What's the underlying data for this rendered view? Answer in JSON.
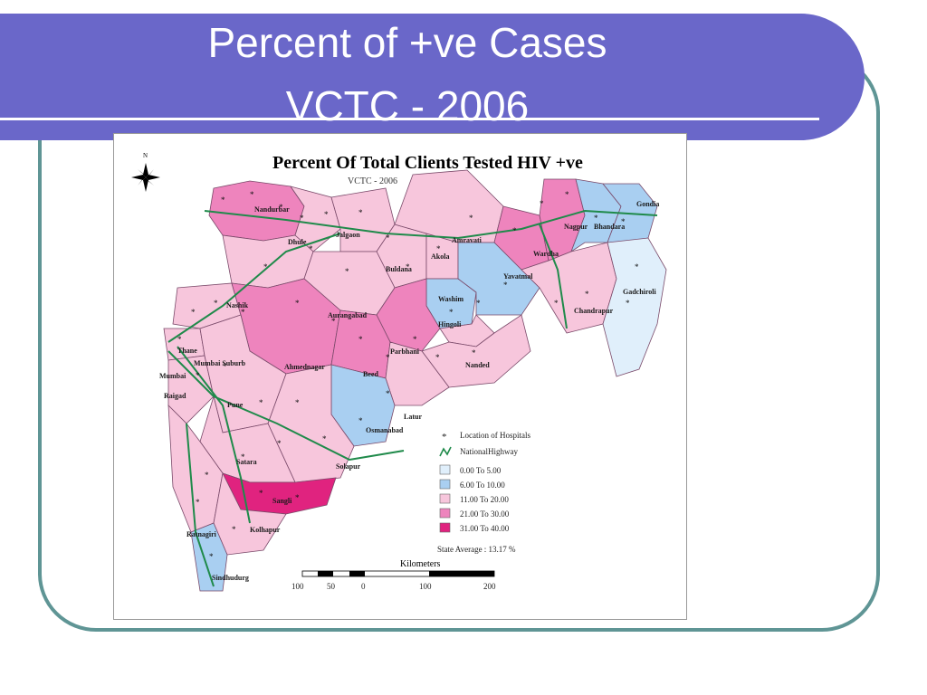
{
  "slide": {
    "title_line1": "Percent of +ve Cases",
    "title_line2": "VCTC - 2006"
  },
  "map": {
    "title": "Percent Of Total Clients Tested HIV +ve",
    "subtitle": "VCTC - 2006",
    "north_label": "N",
    "districts": [
      {
        "name": "Nandurbar",
        "range": "21.00 To 30.00"
      },
      {
        "name": "Dhule",
        "range": "11.00 To 20.00"
      },
      {
        "name": "Jalgaon",
        "range": "11.00 To 20.00"
      },
      {
        "name": "Buldana",
        "range": "11.00 To 20.00"
      },
      {
        "name": "Akola",
        "range": "11.00 To 20.00"
      },
      {
        "name": "Amravati",
        "range": "11.00 To 20.00"
      },
      {
        "name": "Wardha",
        "range": "21.00 To 30.00"
      },
      {
        "name": "Nagpur",
        "range": "21.00 To 30.00"
      },
      {
        "name": "Bhandara",
        "range": "6.00 To 10.00"
      },
      {
        "name": "Gondia",
        "range": "6.00 To 10.00"
      },
      {
        "name": "Yavatmal",
        "range": "6.00 To 10.00"
      },
      {
        "name": "Washim",
        "range": "6.00 To 10.00"
      },
      {
        "name": "Gadchiroli",
        "range": "0.00 To 5.00"
      },
      {
        "name": "Chandrapur",
        "range": "11.00 To 20.00"
      },
      {
        "name": "Nashik",
        "range": "11.00 To 20.00"
      },
      {
        "name": "Aurangabad",
        "range": "11.00 To 20.00"
      },
      {
        "name": "Hingoli",
        "range": "11.00 To 20.00"
      },
      {
        "name": "Parbhani",
        "range": "21.00 To 30.00"
      },
      {
        "name": "Nanded",
        "range": "11.00 To 20.00"
      },
      {
        "name": "Thane",
        "range": "11.00 To 20.00"
      },
      {
        "name": "Mumbai Suburb",
        "range": "11.00 To 20.00"
      },
      {
        "name": "Mumbai",
        "range": "11.00 To 20.00"
      },
      {
        "name": "Ahmednagar",
        "range": "21.00 To 30.00"
      },
      {
        "name": "Beed",
        "range": "21.00 To 30.00"
      },
      {
        "name": "Raigad",
        "range": "11.00 To 20.00"
      },
      {
        "name": "Pune",
        "range": "11.00 To 20.00"
      },
      {
        "name": "Latur",
        "range": "11.00 To 20.00"
      },
      {
        "name": "Osmanabad",
        "range": "6.00 To 10.00"
      },
      {
        "name": "Solapur",
        "range": "11.00 To 20.00"
      },
      {
        "name": "Satara",
        "range": "11.00 To 20.00"
      },
      {
        "name": "Sangli",
        "range": "31.00 To 40.00"
      },
      {
        "name": "Ratnagiri",
        "range": "11.00 To 20.00"
      },
      {
        "name": "Kolhapur",
        "range": "11.00 To 20.00"
      },
      {
        "name": "Sindhudurg",
        "range": "6.00 To 10.00"
      }
    ],
    "legend": {
      "hospitals": "Location of Hospitals",
      "highway": "NationalHighway",
      "classes": [
        {
          "label": "0.00  To  5.00",
          "color": "#e0effb"
        },
        {
          "label": "6.00  To  10.00",
          "color": "#a9cff1"
        },
        {
          "label": "11.00  To  20.00",
          "color": "#f7c6dc"
        },
        {
          "label": "21.00  To  30.00",
          "color": "#ee84bd"
        },
        {
          "label": "31.00  To  40.00",
          "color": "#e0237f"
        }
      ],
      "state_average": "State Average : 13.17 %"
    },
    "scale": {
      "unit": "Kilometers",
      "ticks": [
        "100",
        "50",
        "0",
        "100",
        "200"
      ]
    },
    "colors": {
      "highway": "#1f8a4a",
      "border": "#7a4a6a"
    }
  }
}
